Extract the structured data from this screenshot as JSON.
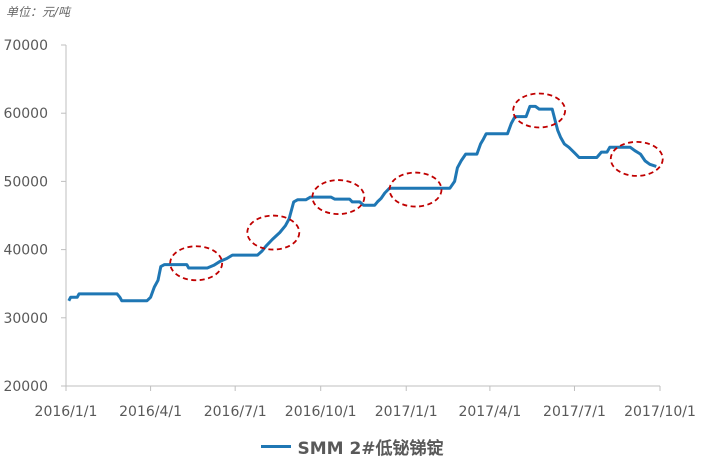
{
  "unit_label": "单位：元/吨",
  "chart_data": {
    "type": "line",
    "title": "",
    "xlabel": "",
    "ylabel": "",
    "ylim": [
      20000,
      70000
    ],
    "yticks": [
      20000,
      30000,
      40000,
      50000,
      60000,
      70000
    ],
    "xticks": [
      "2016/1/1",
      "2016/4/1",
      "2016/7/1",
      "2016/10/1",
      "2017/1/1",
      "2017/4/1",
      "2017/7/1",
      "2017/10/1"
    ],
    "grid": false,
    "legend_position": "bottom",
    "colors": {
      "line": "#1f77b4",
      "axis": "#bfbfbf",
      "tick_label": "#595959",
      "marker": "#c00000"
    },
    "series": [
      {
        "name": "SMM 2#低铋锑锭",
        "points": [
          [
            "2016-01-04",
            32500
          ],
          [
            "2016-01-06",
            33000
          ],
          [
            "2016-01-13",
            33000
          ],
          [
            "2016-01-15",
            33500
          ],
          [
            "2016-02-25",
            33500
          ],
          [
            "2016-02-28",
            33000
          ],
          [
            "2016-03-01",
            32500
          ],
          [
            "2016-03-28",
            32500
          ],
          [
            "2016-04-01",
            33000
          ],
          [
            "2016-04-05",
            34500
          ],
          [
            "2016-04-09",
            35500
          ],
          [
            "2016-04-12",
            37500
          ],
          [
            "2016-04-16",
            37800
          ],
          [
            "2016-05-10",
            37800
          ],
          [
            "2016-05-12",
            37300
          ],
          [
            "2016-06-01",
            37300
          ],
          [
            "2016-06-08",
            37700
          ],
          [
            "2016-06-15",
            38300
          ],
          [
            "2016-06-22",
            38700
          ],
          [
            "2016-06-28",
            39200
          ],
          [
            "2016-07-25",
            39200
          ],
          [
            "2016-07-30",
            39800
          ],
          [
            "2016-08-03",
            40500
          ],
          [
            "2016-08-10",
            41500
          ],
          [
            "2016-08-18",
            42500
          ],
          [
            "2016-08-24",
            43500
          ],
          [
            "2016-08-28",
            44500
          ],
          [
            "2016-09-02",
            47000
          ],
          [
            "2016-09-06",
            47300
          ],
          [
            "2016-09-15",
            47300
          ],
          [
            "2016-09-20",
            47700
          ],
          [
            "2016-10-12",
            47700
          ],
          [
            "2016-10-16",
            47400
          ],
          [
            "2016-11-01",
            47400
          ],
          [
            "2016-11-04",
            47000
          ],
          [
            "2016-11-12",
            47000
          ],
          [
            "2016-11-16",
            46500
          ],
          [
            "2016-11-28",
            46500
          ],
          [
            "2016-12-01",
            47000
          ],
          [
            "2016-12-05",
            47500
          ],
          [
            "2016-12-09",
            48300
          ],
          [
            "2016-12-14",
            49000
          ],
          [
            "2017-02-17",
            49000
          ],
          [
            "2017-02-22",
            50000
          ],
          [
            "2017-02-25",
            52000
          ],
          [
            "2017-03-01",
            53000
          ],
          [
            "2017-03-06",
            54000
          ],
          [
            "2017-03-18",
            54000
          ],
          [
            "2017-03-22",
            55500
          ],
          [
            "2017-03-25",
            56200
          ],
          [
            "2017-03-28",
            57000
          ],
          [
            "2017-04-20",
            57000
          ],
          [
            "2017-04-24",
            58500
          ],
          [
            "2017-04-28",
            59500
          ],
          [
            "2017-05-10",
            59500
          ],
          [
            "2017-05-14",
            61000
          ],
          [
            "2017-05-20",
            61000
          ],
          [
            "2017-05-24",
            60600
          ],
          [
            "2017-06-07",
            60600
          ],
          [
            "2017-06-10",
            59000
          ],
          [
            "2017-06-13",
            57500
          ],
          [
            "2017-06-16",
            56500
          ],
          [
            "2017-06-20",
            55500
          ],
          [
            "2017-06-25",
            55000
          ],
          [
            "2017-07-01",
            54200
          ],
          [
            "2017-07-06",
            53500
          ],
          [
            "2017-07-25",
            53500
          ],
          [
            "2017-07-30",
            54300
          ],
          [
            "2017-08-05",
            54300
          ],
          [
            "2017-08-08",
            55000
          ],
          [
            "2017-08-30",
            55000
          ],
          [
            "2017-09-04",
            54500
          ],
          [
            "2017-09-10",
            54000
          ],
          [
            "2017-09-15",
            53000
          ],
          [
            "2017-09-20",
            52500
          ],
          [
            "2017-09-27",
            52200
          ]
        ]
      }
    ],
    "annotations": [
      {
        "shape": "dashed-ellipse",
        "x": "2016-05-20",
        "y": 38000
      },
      {
        "shape": "dashed-ellipse",
        "x": "2016-08-11",
        "y": 42500
      },
      {
        "shape": "dashed-ellipse",
        "x": "2016-10-20",
        "y": 47700
      },
      {
        "shape": "dashed-ellipse",
        "x": "2017-01-11",
        "y": 48800
      },
      {
        "shape": "dashed-ellipse",
        "x": "2017-05-24",
        "y": 60400
      },
      {
        "shape": "dashed-ellipse",
        "x": "2017-09-06",
        "y": 53300
      }
    ]
  }
}
